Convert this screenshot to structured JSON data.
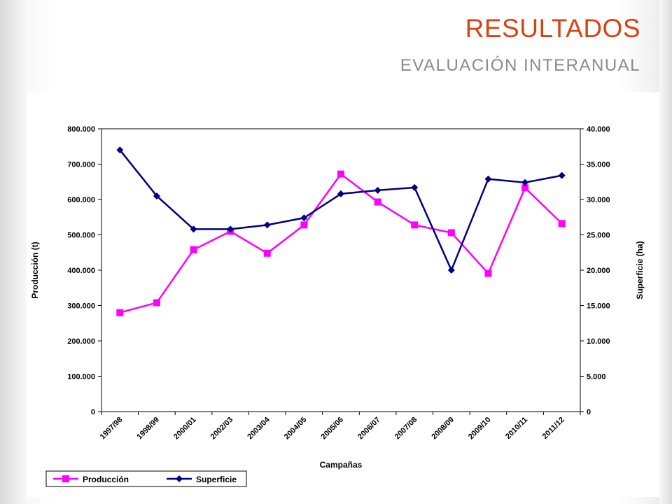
{
  "slide": {
    "title": "RESULTADOS",
    "subtitle": "EVALUACIÓN INTERANUAL"
  },
  "chart_data": {
    "type": "line",
    "xlabel": "Campañas",
    "ylabel": "Producción (t)",
    "y2label": "Superficie (ha)",
    "categories": [
      "1997/98",
      "1998/99",
      "2000/01",
      "2002/03",
      "2003/04",
      "2004/05",
      "2005/06",
      "2006/07",
      "2007/08",
      "2008/09",
      "2009/10",
      "2010/11",
      "2011/12"
    ],
    "ylim": [
      0,
      800000
    ],
    "y2lim": [
      0,
      40000
    ],
    "yticks": [
      "0",
      "100.000",
      "200.000",
      "300.000",
      "400.000",
      "500.000",
      "600.000",
      "700.000",
      "800.000"
    ],
    "y2ticks": [
      "0",
      "5.000",
      "10.000",
      "15.000",
      "20.000",
      "25.000",
      "30.000",
      "35.000",
      "40.000"
    ],
    "grid": false,
    "legend_position": "bottom-left",
    "series": [
      {
        "name": "Producción",
        "axis": "left",
        "color": "#ff00ff",
        "marker": "square",
        "values": [
          280000,
          308000,
          458000,
          510000,
          448000,
          528000,
          672000,
          593000,
          528000,
          506000,
          391000,
          633000,
          532000
        ]
      },
      {
        "name": "Superficie",
        "axis": "right",
        "color": "#000080",
        "marker": "diamond",
        "values": [
          37000,
          30500,
          25800,
          25800,
          26400,
          27400,
          30800,
          31300,
          31700,
          20000,
          32900,
          32400,
          33400
        ]
      }
    ]
  }
}
